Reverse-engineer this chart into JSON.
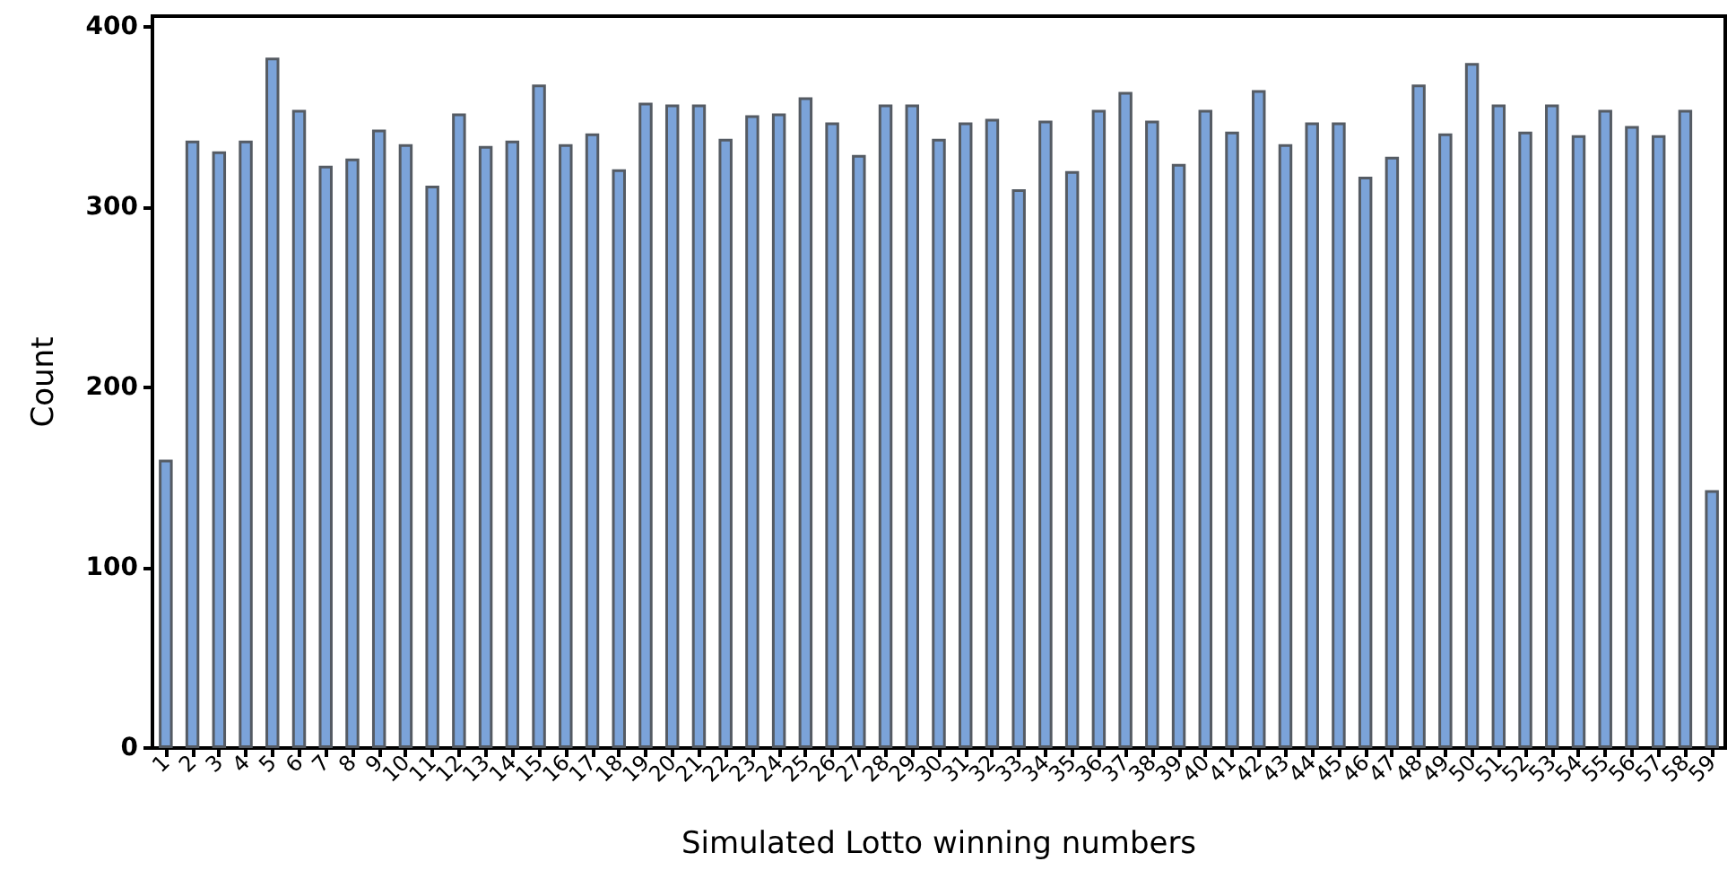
{
  "chart_data": {
    "type": "bar",
    "xlabel": "Simulated Lotto winning numbers",
    "ylabel": "Count",
    "categories": [
      "1",
      "2",
      "3",
      "4",
      "5",
      "6",
      "7",
      "8",
      "9",
      "10",
      "11",
      "12",
      "13",
      "14",
      "15",
      "16",
      "17",
      "18",
      "19",
      "20",
      "21",
      "22",
      "23",
      "24",
      "25",
      "26",
      "27",
      "28",
      "29",
      "30",
      "31",
      "32",
      "33",
      "34",
      "35",
      "36",
      "37",
      "38",
      "39",
      "40",
      "41",
      "42",
      "43",
      "44",
      "45",
      "46",
      "47",
      "48",
      "49",
      "50",
      "51",
      "52",
      "53",
      "54",
      "55",
      "56",
      "57",
      "58",
      "59"
    ],
    "values": [
      160,
      337,
      331,
      337,
      383,
      354,
      323,
      327,
      343,
      335,
      312,
      352,
      334,
      337,
      368,
      335,
      341,
      321,
      358,
      357,
      357,
      338,
      351,
      352,
      361,
      347,
      329,
      357,
      357,
      338,
      347,
      349,
      310,
      348,
      320,
      354,
      364,
      348,
      324,
      354,
      342,
      365,
      335,
      347,
      347,
      317,
      328,
      368,
      341,
      380,
      357,
      342,
      357,
      340,
      354,
      345,
      340,
      354,
      143
    ],
    "color": "#7ba3d9",
    "ylim": [
      0,
      406
    ],
    "yticks": [
      0,
      100,
      200,
      300,
      400
    ],
    "grid": false
  }
}
